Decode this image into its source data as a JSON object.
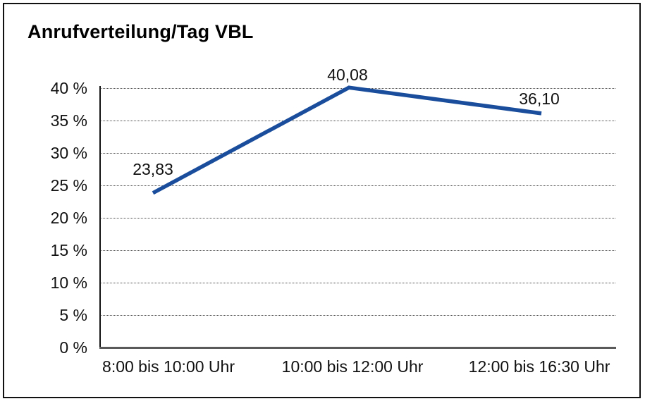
{
  "chart_data": {
    "type": "line",
    "title": "Anrufverteilung/Tag VBL",
    "categories": [
      "8:00 bis 10:00 Uhr",
      "10:00 bis 12:00 Uhr",
      "12:00 bis 16:30 Uhr"
    ],
    "series": [
      {
        "name": "Anrufverteilung/Tag VBL",
        "values": [
          23.83,
          40.08,
          36.1
        ]
      }
    ],
    "data_labels": [
      "23,83",
      "40,08",
      "36,10"
    ],
    "y_tick_labels": [
      "40 %",
      "35 %",
      "30 %",
      "25 %",
      "20 %",
      "15 %",
      "10 %",
      "5 %",
      "0 %"
    ],
    "ylabel": "",
    "xlabel": "",
    "ylim": [
      0,
      40
    ],
    "y_tick_step": 5,
    "grid": "horizontal-dotted",
    "legend_position": "none",
    "colors": {
      "line": "#1A4E9C",
      "text": "#111111",
      "gridline": "#4a4a4a",
      "y_axis": "#111111",
      "x_axis": "#5a5a5a",
      "border": "#111111",
      "background": "#ffffff"
    }
  }
}
